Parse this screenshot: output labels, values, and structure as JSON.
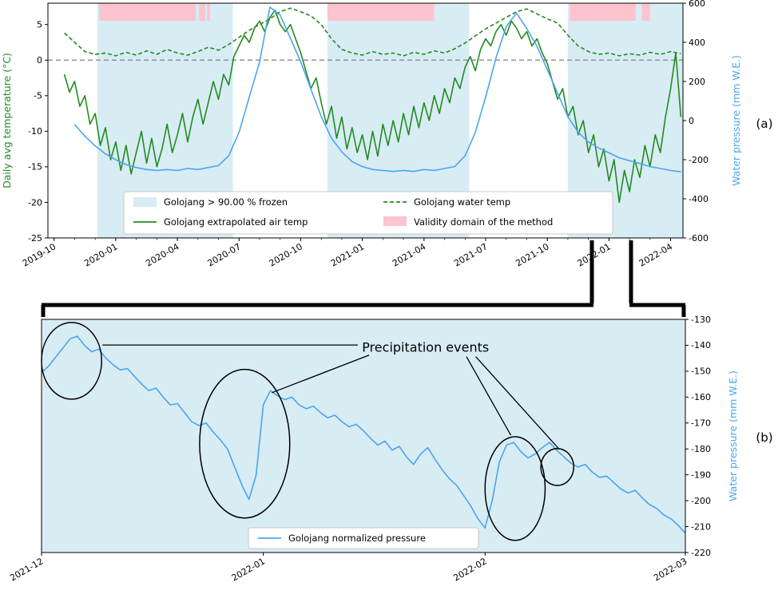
{
  "figure": {
    "panel_a_label": "(a)",
    "panel_b_label": "(b)",
    "colors": {
      "green": "#228B22",
      "blue": "#4AA5F0",
      "frozen_fill": "#D8ECF4",
      "validity_fill": "#FBC4CE",
      "zero_line": "#808080",
      "axis": "#000000"
    }
  },
  "chart_data": [
    {
      "id": "panel-a",
      "type": "line",
      "title": "",
      "ylabel_left": "Daily avg temperature (°C)",
      "ylabel_right": "Water pressure (mm W.E.)",
      "xlim": [
        -0.3,
        30.6
      ],
      "ylim_left": [
        -25,
        8
      ],
      "ylim_right": [
        -600,
        600
      ],
      "grid": false,
      "x_ticks": [
        {
          "pos": 0,
          "label": "2019-10"
        },
        {
          "pos": 3,
          "label": "2020-01"
        },
        {
          "pos": 6,
          "label": "2020-04"
        },
        {
          "pos": 9,
          "label": "2020-07"
        },
        {
          "pos": 12,
          "label": "2020-10"
        },
        {
          "pos": 15,
          "label": "2021-01"
        },
        {
          "pos": 18,
          "label": "2021-04"
        },
        {
          "pos": 21,
          "label": "2021-07"
        },
        {
          "pos": 24,
          "label": "2021-10"
        },
        {
          "pos": 27,
          "label": "2022-01"
        },
        {
          "pos": 30,
          "label": "2022-04"
        }
      ],
      "yticks_left": [
        {
          "v": 5,
          "label": "5"
        },
        {
          "v": 0,
          "label": "0"
        },
        {
          "v": -5,
          "label": "-5"
        },
        {
          "v": -10,
          "label": "-10"
        },
        {
          "v": -15,
          "label": "-15"
        },
        {
          "v": -20,
          "label": "-20"
        },
        {
          "v": -25,
          "label": "-25"
        }
      ],
      "yticks_right": [
        {
          "v": 600,
          "label": "600"
        },
        {
          "v": 400,
          "label": "400"
        },
        {
          "v": 200,
          "label": "200"
        },
        {
          "v": 0,
          "label": "0"
        },
        {
          "v": -200,
          "label": "-200"
        },
        {
          "v": -400,
          "label": "-400"
        },
        {
          "v": -600,
          "label": "-600"
        }
      ],
      "zero_line_left": 0,
      "frozen_regions": [
        [
          2.1,
          8.7
        ],
        [
          13.3,
          20.2
        ],
        [
          25.0,
          30.6
        ]
      ],
      "validity_regions": [
        [
          2.2,
          6.9
        ],
        [
          7.05,
          7.35
        ],
        [
          7.45,
          7.6
        ],
        [
          13.3,
          18.5
        ],
        [
          25.1,
          28.3
        ],
        [
          28.6,
          29.0
        ]
      ],
      "legend": [
        {
          "label": "Golojang > 90.00 % frozen",
          "swatch": "frozen-patch"
        },
        {
          "label": "Golojang extrapolated air temp",
          "swatch": "green-solid-line"
        },
        {
          "label": "Golojang water temp",
          "swatch": "green-dashed-line"
        },
        {
          "label": "Validity domain of the method",
          "swatch": "pink-patch"
        }
      ],
      "series": [
        {
          "name": "Golojang extrapolated air temp",
          "key": "air-temp",
          "axis": "left",
          "dash": false,
          "color": "green",
          "x0": 0.5,
          "dx": 0.25,
          "y": [
            -2,
            -4.5,
            -3,
            -6.5,
            -5,
            -9,
            -7.5,
            -12,
            -9.5,
            -14,
            -11.5,
            -15.5,
            -12,
            -16,
            -13,
            -10,
            -14.5,
            -11,
            -15,
            -12.5,
            -9,
            -13,
            -10.5,
            -7.5,
            -11.5,
            -8,
            -5.5,
            -9,
            -6,
            -3,
            -5.5,
            -2,
            -3.5,
            0.5,
            2,
            3.5,
            2.5,
            4.5,
            5.5,
            4,
            6,
            7,
            5,
            4,
            5,
            3,
            1,
            -1.5,
            -4,
            -2.5,
            -6,
            -9,
            -6.5,
            -11,
            -8,
            -12.5,
            -9.5,
            -13,
            -10.5,
            -14,
            -10,
            -13.5,
            -9,
            -12,
            -8.5,
            -11.5,
            -7.5,
            -10.5,
            -6.5,
            -9.5,
            -6,
            -8.5,
            -5,
            -7.5,
            -4,
            -6,
            -2.5,
            -4,
            -1,
            0.5,
            -1.5,
            1.5,
            3,
            2,
            4,
            5,
            3.5,
            5.5,
            4.5,
            3,
            4,
            2,
            3,
            1,
            -0.5,
            -3,
            -5.5,
            -4,
            -8,
            -6.5,
            -10.5,
            -8.5,
            -13,
            -10.5,
            -15,
            -12.5,
            -17,
            -14,
            -20,
            -15.5,
            -18.5,
            -14,
            -16.5,
            -12,
            -15,
            -10.5,
            -13,
            -8,
            -4,
            1,
            -8
          ]
        },
        {
          "name": "Golojang water temp",
          "key": "water-temp",
          "axis": "left",
          "dash": true,
          "color": "green",
          "x0": 0.5,
          "dx": 0.5,
          "y": [
            3.8,
            2.5,
            1.2,
            0.8,
            1,
            0.6,
            1.1,
            0.7,
            1.3,
            0.8,
            1.5,
            1,
            0.7,
            1.2,
            1.8,
            1.4,
            2.2,
            3.2,
            4.2,
            5,
            5.8,
            6.8,
            7.3,
            6.8,
            6.2,
            5,
            3,
            1.5,
            1,
            0.7,
            1.2,
            0.8,
            1,
            0.6,
            1.1,
            0.8,
            1.3,
            1,
            1.6,
            2.4,
            3.4,
            4.4,
            5.2,
            6,
            6.8,
            7.2,
            6.5,
            5.8,
            5.2,
            3.5,
            2,
            1.2,
            0.8,
            1,
            0.6,
            0.9,
            0.7,
            1.1,
            0.8,
            1.2,
            0.9
          ]
        },
        {
          "name": "Water pressure",
          "key": "water-pressure",
          "axis": "right",
          "dash": false,
          "color": "blue",
          "x0": 1.0,
          "dx": 0.5,
          "y": [
            -20,
            -80,
            -130,
            -170,
            -200,
            -225,
            -240,
            -250,
            -255,
            -250,
            -255,
            -245,
            -250,
            -240,
            -230,
            -180,
            -60,
            120,
            300,
            580,
            540,
            420,
            300,
            160,
            20,
            -90,
            -160,
            -210,
            -235,
            -250,
            -255,
            -260,
            -255,
            -260,
            -250,
            -255,
            -245,
            -235,
            -180,
            -60,
            120,
            320,
            480,
            550,
            470,
            380,
            260,
            140,
            20,
            -60,
            -110,
            -140,
            -165,
            -190,
            -205,
            -220,
            -235,
            -245,
            -255,
            -262
          ]
        }
      ]
    },
    {
      "id": "panel-b",
      "type": "line",
      "title": "",
      "ylabel_right": "Water pressure (mm W.E.)",
      "xlim": [
        0,
        90
      ],
      "ylim": [
        -220,
        -130
      ],
      "grid": false,
      "background": "frozen_fill",
      "x_ticks": [
        {
          "pos": 0,
          "label": "2021-12"
        },
        {
          "pos": 31,
          "label": "2022-01"
        },
        {
          "pos": 62,
          "label": "2022-02"
        },
        {
          "pos": 90,
          "label": "2022-03"
        }
      ],
      "yticks": [
        {
          "v": -130,
          "label": "-130"
        },
        {
          "v": -140,
          "label": "-140"
        },
        {
          "v": -150,
          "label": "-150"
        },
        {
          "v": -160,
          "label": "-160"
        },
        {
          "v": -170,
          "label": "-170"
        },
        {
          "v": -180,
          "label": "-180"
        },
        {
          "v": -190,
          "label": "-190"
        },
        {
          "v": -200,
          "label": "-200"
        },
        {
          "v": -210,
          "label": "-210"
        },
        {
          "v": -220,
          "label": "-220"
        }
      ],
      "legend": [
        {
          "label": "Golojang normalized pressure",
          "swatch": "blue-line"
        }
      ],
      "annotation": {
        "text": "Precipitation events",
        "text_pos": [
          44.8,
          -141.0
        ],
        "lines": [
          [
            8.5,
            -139.9,
            44.2,
            -139.9
          ],
          [
            45.8,
            -143.8,
            32.2,
            -158.3
          ],
          [
            59.4,
            -144.4,
            65.6,
            -174.7
          ],
          [
            60.7,
            -144.4,
            72.3,
            -179.9
          ]
        ],
        "ellipses": [
          [
            4.2,
            -146.0,
            4.2,
            14.8
          ],
          [
            28.4,
            -178.0,
            6.3,
            28.7
          ],
          [
            66.2,
            -195.3,
            4.2,
            20.0
          ],
          [
            72.1,
            -187.0,
            2.3,
            7.1
          ]
        ]
      },
      "series": [
        {
          "name": "Golojang normalized pressure",
          "key": "normalized-pressure",
          "axis": "right",
          "dash": false,
          "color": "blue",
          "x0": 0,
          "dx": 1,
          "y": [
            -150.5,
            -148,
            -144.5,
            -141,
            -137.5,
            -136.5,
            -140,
            -142.5,
            -141.5,
            -145,
            -147.5,
            -149.5,
            -149,
            -152,
            -155,
            -157.5,
            -156.5,
            -160,
            -163,
            -162.5,
            -166,
            -169.5,
            -171,
            -170,
            -173.5,
            -176.5,
            -180,
            -187,
            -194,
            -199.5,
            -190,
            -163,
            -157.5,
            -159.5,
            -161,
            -160,
            -163,
            -164.5,
            -163.5,
            -166,
            -168,
            -167,
            -169.5,
            -171.5,
            -170.5,
            -173,
            -176,
            -178.5,
            -177,
            -180.5,
            -179,
            -183,
            -186,
            -182,
            -179.5,
            -184,
            -188,
            -191.5,
            -194,
            -198,
            -202,
            -207,
            -210.5,
            -200,
            -185,
            -178.5,
            -177.5,
            -181,
            -183.5,
            -182,
            -179.5,
            -177.5,
            -180.5,
            -183,
            -185.5,
            -187,
            -186,
            -189,
            -191,
            -190.5,
            -193,
            -195.5,
            -197,
            -196,
            -199,
            -201.5,
            -203,
            -205.5,
            -207,
            -209.5,
            -212.5
          ]
        }
      ]
    }
  ]
}
